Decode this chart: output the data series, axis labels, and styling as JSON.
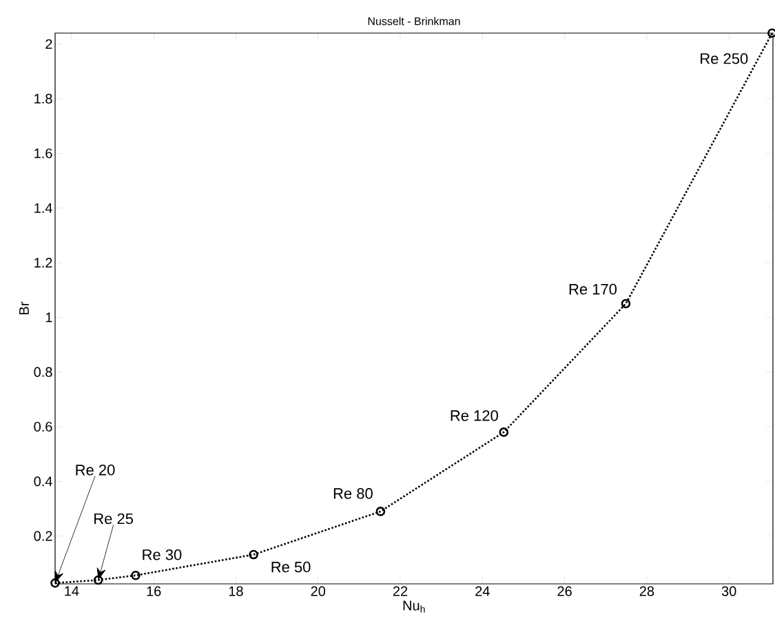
{
  "chart_data": {
    "type": "line",
    "title": "Nusselt - Brinkman",
    "xlabel": "Nu$_{h}$",
    "ylabel": "Br",
    "x": [
      13.6,
      14.65,
      15.56,
      18.43,
      21.52,
      24.52,
      27.49,
      31.05
    ],
    "series": [
      {
        "color": "#000000",
        "values": [
          0.028,
          0.039,
          0.056,
          0.132,
          0.29,
          0.58,
          1.05,
          2.04
        ]
      }
    ],
    "xlim": [
      13.6,
      31.07
    ],
    "ylim": [
      0.025,
      2.04
    ],
    "xticks": [
      14,
      16,
      18,
      20,
      22,
      24,
      26,
      28,
      30
    ],
    "yticks": [
      0.2,
      0.4,
      0.6,
      0.8,
      1,
      1.2,
      1.4,
      1.6,
      1.8,
      2
    ],
    "marker": "circle",
    "line_style": "dotted",
    "grid": false,
    "annotations": [
      "Re 20",
      "Re 25",
      {
        "text": "Re 30",
        "x": 15.56,
        "y": 0.056
      },
      {
        "text": "Re 50",
        "x": 18.43,
        "y": 0.132
      },
      {
        "text": "Re 80",
        "x": 21.52,
        "y": 0.29
      },
      {
        "text": "Re 120",
        "x": 24.52,
        "y": 0.58
      },
      {
        "text": "Re 170",
        "x": 27.49,
        "y": 1.05
      },
      {
        "text": "Re 250",
        "x": 31.05,
        "y": 2.04
      }
    ]
  }
}
